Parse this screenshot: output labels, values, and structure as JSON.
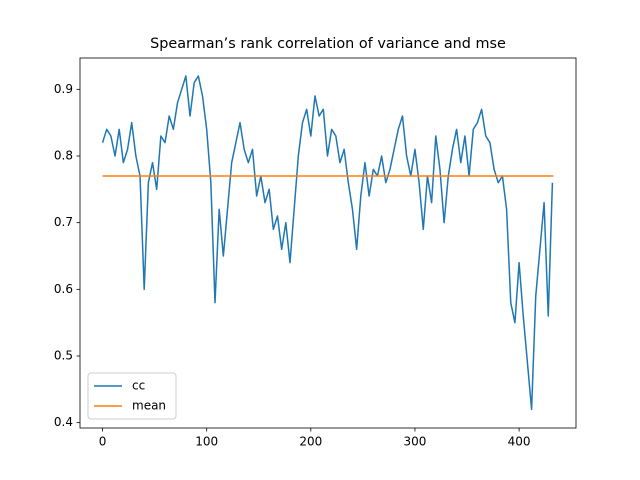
{
  "chart_data": {
    "type": "line",
    "title": "Spearman’s rank correlation of variance and mse",
    "xlim": [
      -21.65,
      454.65
    ],
    "ylim": [
      0.392,
      0.947
    ],
    "xticks": [
      0,
      100,
      200,
      300,
      400
    ],
    "yticks": [
      0.4,
      0.5,
      0.6,
      0.7,
      0.8,
      0.9
    ],
    "legend": "lower left",
    "series": [
      {
        "name": "cc",
        "color": "#1f77b4",
        "x": [
          0,
          4,
          8,
          12,
          16,
          20,
          24,
          28,
          32,
          36,
          40,
          44,
          48,
          52,
          56,
          60,
          64,
          68,
          72,
          76,
          80,
          84,
          88,
          92,
          96,
          100,
          104,
          108,
          112,
          116,
          120,
          124,
          128,
          132,
          136,
          140,
          144,
          148,
          152,
          156,
          160,
          164,
          168,
          172,
          176,
          180,
          184,
          188,
          192,
          196,
          200,
          204,
          208,
          212,
          216,
          220,
          224,
          228,
          232,
          236,
          240,
          244,
          248,
          252,
          256,
          260,
          264,
          268,
          272,
          276,
          280,
          284,
          288,
          292,
          296,
          300,
          304,
          308,
          312,
          316,
          320,
          324,
          328,
          332,
          336,
          340,
          344,
          348,
          352,
          356,
          360,
          364,
          368,
          372,
          376,
          380,
          384,
          388,
          392,
          396,
          400,
          404,
          408,
          412,
          416,
          420,
          424,
          428,
          432
        ],
        "values": [
          0.82,
          0.84,
          0.83,
          0.8,
          0.84,
          0.79,
          0.81,
          0.85,
          0.8,
          0.77,
          0.6,
          0.76,
          0.79,
          0.75,
          0.83,
          0.82,
          0.86,
          0.84,
          0.88,
          0.9,
          0.92,
          0.86,
          0.91,
          0.92,
          0.89,
          0.84,
          0.76,
          0.58,
          0.72,
          0.65,
          0.72,
          0.79,
          0.82,
          0.85,
          0.81,
          0.79,
          0.81,
          0.74,
          0.77,
          0.73,
          0.75,
          0.69,
          0.71,
          0.66,
          0.7,
          0.64,
          0.72,
          0.8,
          0.85,
          0.87,
          0.83,
          0.89,
          0.86,
          0.87,
          0.8,
          0.84,
          0.83,
          0.79,
          0.81,
          0.76,
          0.72,
          0.66,
          0.74,
          0.79,
          0.74,
          0.78,
          0.77,
          0.8,
          0.76,
          0.78,
          0.81,
          0.84,
          0.86,
          0.8,
          0.77,
          0.81,
          0.76,
          0.69,
          0.77,
          0.73,
          0.83,
          0.78,
          0.7,
          0.77,
          0.81,
          0.84,
          0.79,
          0.83,
          0.77,
          0.84,
          0.85,
          0.87,
          0.83,
          0.82,
          0.78,
          0.76,
          0.77,
          0.72,
          0.58,
          0.55,
          0.64,
          0.56,
          0.49,
          0.42,
          0.59,
          0.66,
          0.73,
          0.56,
          0.76
        ]
      },
      {
        "name": "mean",
        "color": "#ff7f0e",
        "x": [
          0,
          433
        ],
        "values": [
          0.77,
          0.77
        ]
      }
    ]
  }
}
